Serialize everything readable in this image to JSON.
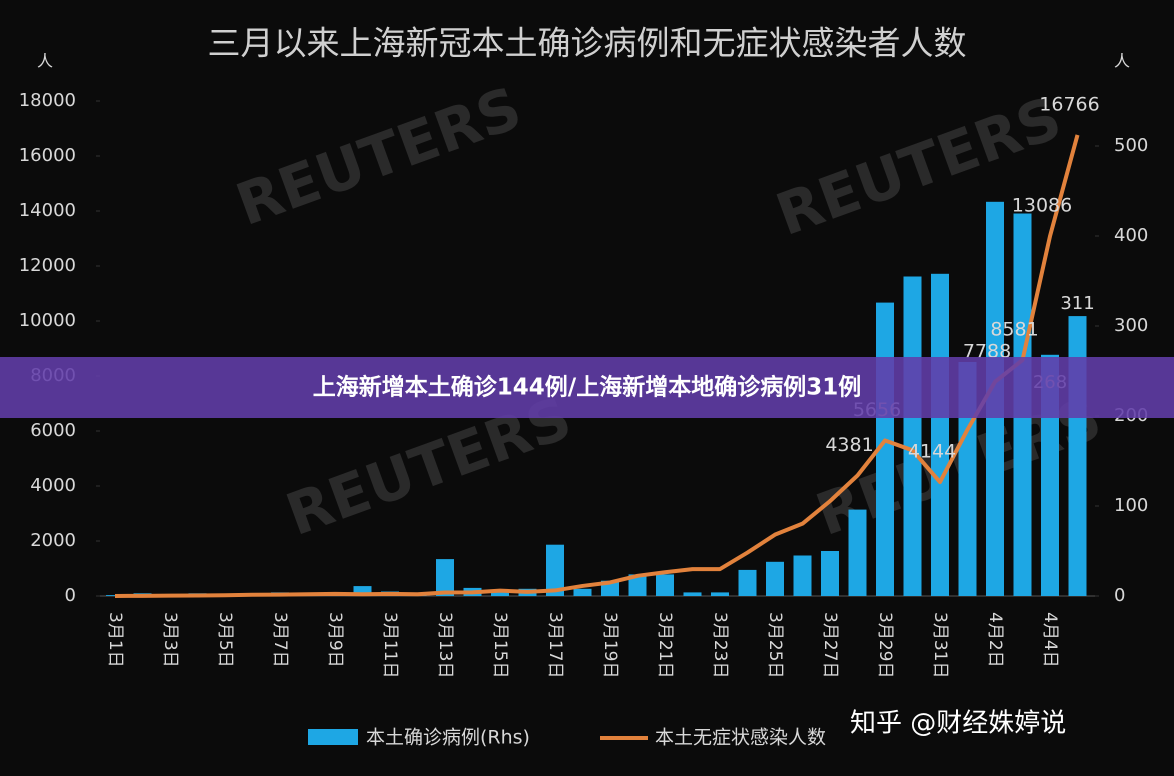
{
  "chart_data": {
    "type": "bar-line",
    "title": "三月以来上海新冠本土确诊病例和无症状感染者人数",
    "y_label": "人",
    "y2_label": "人",
    "banner": "上海新增本土确诊144例/上海新增本地确诊病例31例",
    "watermark": "REUTERS",
    "credit": "知乎 @财经姝婷说",
    "categories": [
      "3月1日",
      null,
      "3月3日",
      null,
      "3月5日",
      null,
      "3月7日",
      null,
      "3月9日",
      null,
      "3月11日",
      null,
      "3月13日",
      null,
      "3月15日",
      null,
      "3月17日",
      null,
      "3月19日",
      null,
      "3月21日",
      null,
      "3月23日",
      null,
      "3月25日",
      null,
      "3月27日",
      null,
      "3月29日",
      null,
      "3月31日",
      null,
      "4月2日",
      null,
      "4月4日",
      null
    ],
    "series": [
      {
        "name": "本土确诊病例(Rhs)",
        "type": "bar",
        "axis": "y2",
        "color": "#1ea7e4",
        "values": [
          1,
          3,
          2,
          3,
          0,
          3,
          4,
          3,
          4,
          11,
          5,
          1,
          41,
          9,
          5,
          8,
          57,
          8,
          17,
          24,
          24,
          4,
          4,
          29,
          38,
          45,
          50,
          96,
          326,
          355,
          358,
          260,
          438,
          425,
          268,
          311
        ],
        "value_labels": [
          null,
          null,
          null,
          null,
          null,
          null,
          null,
          null,
          null,
          null,
          null,
          null,
          null,
          null,
          null,
          null,
          null,
          null,
          null,
          null,
          null,
          null,
          null,
          null,
          null,
          null,
          null,
          null,
          null,
          null,
          null,
          null,
          null,
          null,
          "268",
          "311"
        ]
      },
      {
        "name": "本土无症状感染人数",
        "type": "line",
        "color": "#e2823c",
        "values": [
          1,
          5,
          14,
          16,
          28,
          45,
          51,
          62,
          76,
          64,
          78,
          64,
          128,
          130,
          197,
          150,
          203,
          366,
          492,
          734,
          865,
          977,
          979,
          1580,
          2231,
          2631,
          3450,
          4381,
          5656,
          5298,
          4144,
          6051,
          7788,
          8581,
          13086,
          16766
        ],
        "value_labels": [
          null,
          null,
          null,
          null,
          null,
          null,
          null,
          null,
          null,
          null,
          null,
          null,
          null,
          null,
          null,
          null,
          null,
          null,
          null,
          null,
          null,
          null,
          null,
          null,
          null,
          null,
          null,
          "4381",
          "5656",
          null,
          "4144",
          null,
          "7788",
          "8581",
          "13086",
          "16766"
        ]
      }
    ],
    "ylim": [
      0,
      18000
    ],
    "yticks": [
      0,
      2000,
      4000,
      6000,
      8000,
      10000,
      12000,
      14000,
      16000,
      18000
    ],
    "y2lim": [
      0,
      550
    ],
    "y2ticks": [
      0,
      100,
      200,
      300,
      400,
      500
    ]
  }
}
